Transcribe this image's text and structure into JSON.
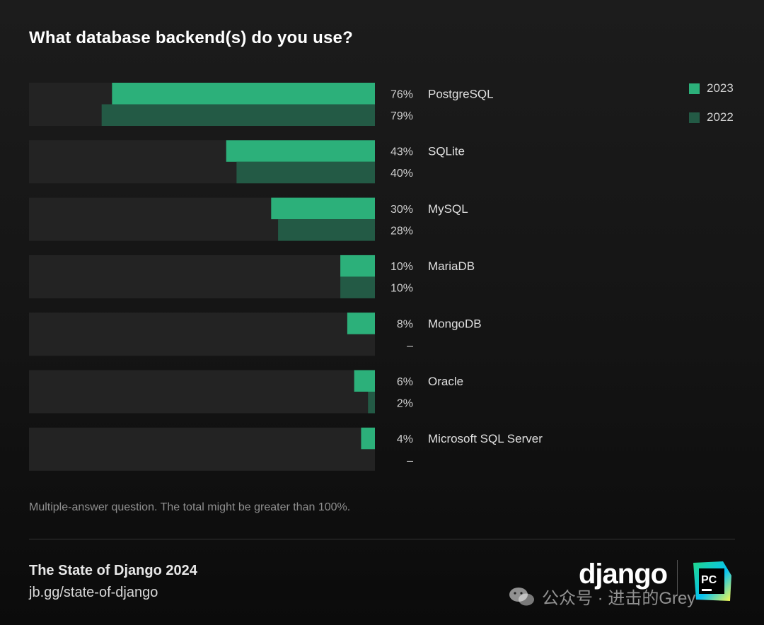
{
  "title": "What database backend(s) do you use?",
  "colors": {
    "bar_2023": "#2cb07a",
    "bar_2022": "#235a45",
    "track": "#232323",
    "value_text": "#d0d0d0",
    "label_text": "#e0e0e0"
  },
  "chart_data": {
    "type": "bar",
    "orientation": "horizontal",
    "title": "What database backend(s) do you use?",
    "categories": [
      "PostgreSQL",
      "SQLite",
      "MySQL",
      "MariaDB",
      "MongoDB",
      "Oracle",
      "Microsoft SQL Server"
    ],
    "series": [
      {
        "name": "2023",
        "values": [
          76,
          43,
          30,
          10,
          8,
          6,
          4
        ],
        "labels": [
          "76%",
          "43%",
          "30%",
          "10%",
          "8%",
          "6%",
          "4%"
        ]
      },
      {
        "name": "2022",
        "values": [
          79,
          40,
          28,
          10,
          null,
          2,
          null
        ],
        "labels": [
          "79%",
          "40%",
          "28%",
          "10%",
          "–",
          "2%",
          "–"
        ]
      }
    ],
    "xlim": [
      0,
      100
    ],
    "legend_position": "top-right",
    "grid": false
  },
  "legend": [
    {
      "label": "2023",
      "color": "#2cb07a"
    },
    {
      "label": "2022",
      "color": "#235a45"
    }
  ],
  "note": "Multiple-answer question. The total might be greater than 100%.",
  "footer": {
    "title": "The State of Django 2024",
    "link": "jb.gg/state-of-django",
    "django_logo": "django",
    "pc_logo": "PC"
  },
  "watermark": {
    "text": "公众号 · 进击的Grey"
  }
}
